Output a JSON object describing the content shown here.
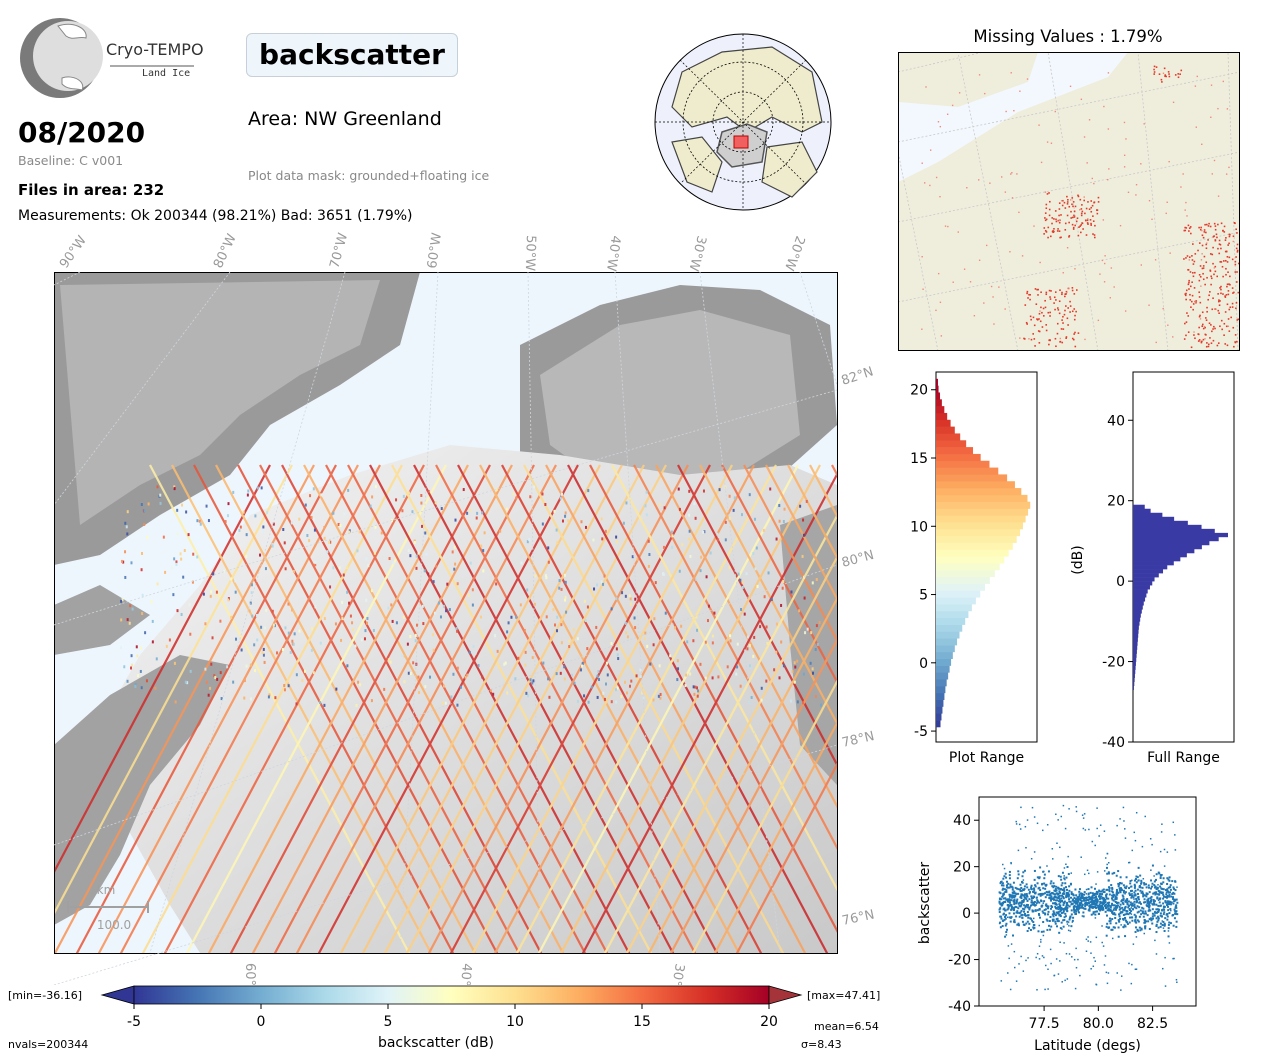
{
  "logo": {
    "title": "Cryo-TEMPO",
    "subtitle": "Land Ice"
  },
  "header": {
    "date": "08/2020",
    "baseline": "Baseline: C v001",
    "files": "Files in area: 232",
    "measurements": "Measurements: Ok 200344 (98.21%) Bad: 3651 (1.79%)",
    "title": "backscatter",
    "area": "Area: NW Greenland",
    "mask": "Plot data mask: grounded+floating ice"
  },
  "main_map": {
    "lon_labels": [
      "90°W",
      "80°W",
      "70°W",
      "60°W",
      "50°W",
      "40°W",
      "30°W",
      "20°W"
    ],
    "bottom_labels": [
      "60°W",
      "40°W",
      "30°W"
    ],
    "lat_labels": [
      "82°N",
      "80°N",
      "78°N",
      "76°N"
    ],
    "scale_unit": "km",
    "scale_value": "100.0",
    "colors": {
      "ocean": "#eef6fd",
      "ice": "#e4e4e4",
      "land": "#8e8e8e"
    }
  },
  "missing": {
    "title": "Missing Values : 1.79%",
    "land_color": "#efeedd",
    "ocean_color": "#f3f8fe"
  },
  "colorbar": {
    "label": "backscatter (dB)",
    "min_label": "[min=-36.16]",
    "max_label": "[max=47.41]",
    "ticks": [
      "-5",
      "0",
      "5",
      "10",
      "15",
      "20"
    ],
    "cmap": [
      "#313695",
      "#4575b4",
      "#74add1",
      "#abd9e9",
      "#e0f3f8",
      "#ffffbf",
      "#fee090",
      "#fdae61",
      "#f46d43",
      "#d73027",
      "#a50026"
    ],
    "mean": "mean=6.54",
    "sigma": "σ=8.43",
    "nvals": "nvals=200344"
  },
  "chart_data": [
    {
      "type": "bar",
      "orientation": "horizontal",
      "xlabel": "Plot Range",
      "ylim": [
        -5.8,
        21.3
      ],
      "yticks": [
        "-5",
        "0",
        "5",
        "10",
        "15",
        "20"
      ],
      "bins": [
        {
          "y": -5,
          "v": 4
        },
        {
          "y": -4,
          "v": 6
        },
        {
          "y": -3,
          "v": 8
        },
        {
          "y": -2,
          "v": 10
        },
        {
          "y": -1,
          "v": 13
        },
        {
          "y": 0,
          "v": 16
        },
        {
          "y": 1,
          "v": 20
        },
        {
          "y": 2,
          "v": 25
        },
        {
          "y": 3,
          "v": 31
        },
        {
          "y": 4,
          "v": 38
        },
        {
          "y": 5,
          "v": 47
        },
        {
          "y": 6,
          "v": 57
        },
        {
          "y": 7,
          "v": 67
        },
        {
          "y": 8,
          "v": 76
        },
        {
          "y": 9,
          "v": 84
        },
        {
          "y": 10,
          "v": 90
        },
        {
          "y": 11,
          "v": 95
        },
        {
          "y": 11.5,
          "v": 97
        },
        {
          "y": 12,
          "v": 91
        },
        {
          "y": 13,
          "v": 78
        },
        {
          "y": 14,
          "v": 60
        },
        {
          "y": 15,
          "v": 42
        },
        {
          "y": 16,
          "v": 28
        },
        {
          "y": 17,
          "v": 17
        },
        {
          "y": 18,
          "v": 10
        },
        {
          "y": 19,
          "v": 5
        },
        {
          "y": 20,
          "v": 2
        }
      ]
    },
    {
      "type": "bar",
      "orientation": "horizontal",
      "xlabel": "Full Range",
      "ylabel": "(dB)",
      "ylim": [
        -40,
        52
      ],
      "yticks": [
        "-40",
        "-20",
        "0",
        "20",
        "40"
      ],
      "color": "#3a3aa4",
      "bins": [
        {
          "y": -27,
          "v": 1
        },
        {
          "y": -24,
          "v": 2
        },
        {
          "y": -21,
          "v": 3
        },
        {
          "y": -18,
          "v": 4
        },
        {
          "y": -15,
          "v": 5
        },
        {
          "y": -12,
          "v": 6
        },
        {
          "y": -9,
          "v": 8
        },
        {
          "y": -6,
          "v": 11
        },
        {
          "y": -3,
          "v": 15
        },
        {
          "y": 0,
          "v": 22
        },
        {
          "y": 3,
          "v": 35
        },
        {
          "y": 6,
          "v": 55
        },
        {
          "y": 9,
          "v": 78
        },
        {
          "y": 11,
          "v": 97
        },
        {
          "y": 13,
          "v": 70
        },
        {
          "y": 15,
          "v": 42
        },
        {
          "y": 17,
          "v": 18
        },
        {
          "y": 19,
          "v": 6
        }
      ]
    },
    {
      "type": "scatter",
      "xlabel": "Latitude (degs)",
      "ylabel": "backscatter",
      "xlim": [
        74.5,
        84.5
      ],
      "ylim": [
        -40,
        50
      ],
      "xticks": [
        "77.5",
        "80.0",
        "82.5"
      ],
      "yticks": [
        "-40",
        "-20",
        "0",
        "20",
        "40"
      ],
      "color": "#1f77b4",
      "x_range": [
        75.4,
        83.6
      ],
      "y_center": 5,
      "y_spread": [
        -33,
        47
      ]
    }
  ]
}
